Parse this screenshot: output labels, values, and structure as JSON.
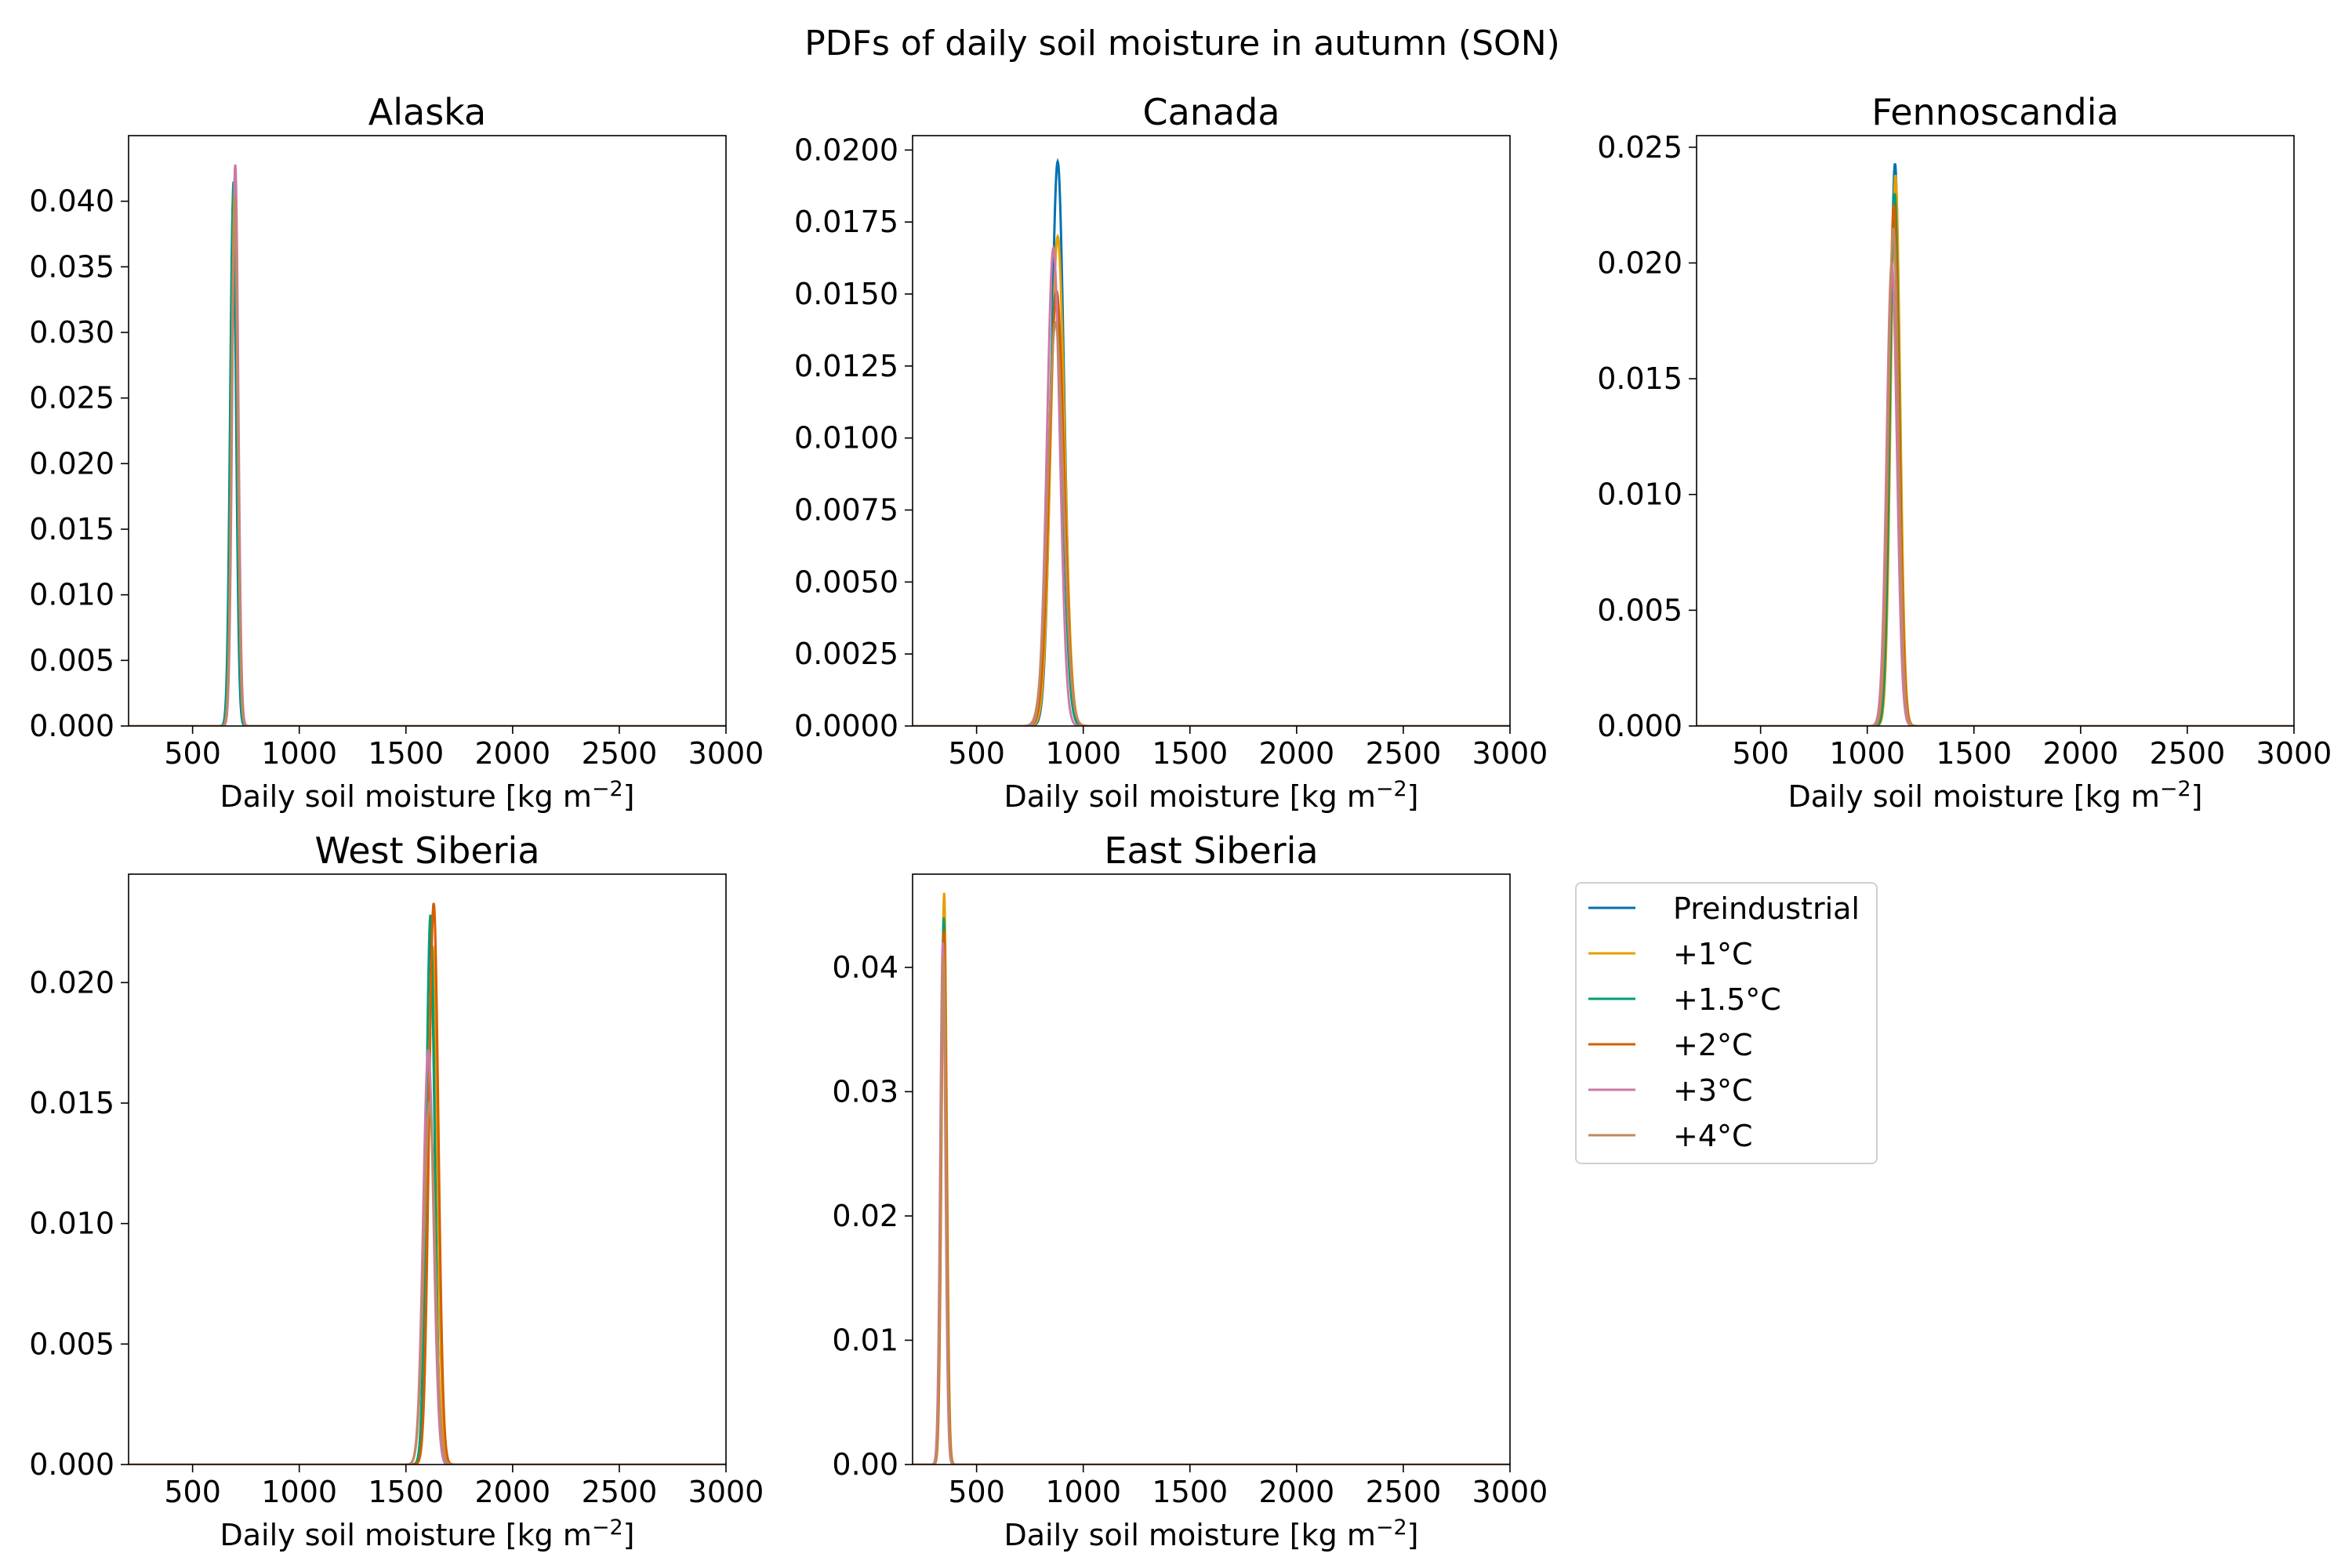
{
  "figure": {
    "title": "PDFs of daily soil moisture in autumn (SON)"
  },
  "legend": {
    "placement": "right of East Siberia panel, top-left",
    "entries": [
      {
        "label": "Preindustrial",
        "color": "#0072B2"
      },
      {
        "label": "+1°C",
        "color": "#E69F00"
      },
      {
        "label": "+1.5°C",
        "color": "#009E73"
      },
      {
        "label": "+2°C",
        "color": "#D55E00"
      },
      {
        "label": "+3°C",
        "color": "#CC79A7"
      },
      {
        "label": "+4°C",
        "color": "#C08A60"
      }
    ]
  },
  "chart_data": [
    {
      "type": "line",
      "title": "Alaska",
      "xlabel": "Daily soil moisture [kg m⁻²]",
      "ylabel": "",
      "xlim": [
        200,
        3000
      ],
      "ylim": [
        0,
        0.045
      ],
      "xticks": [
        "500",
        "1000",
        "1500",
        "2000",
        "2500",
        "3000"
      ],
      "yticks": [
        "0.000",
        "0.005",
        "0.010",
        "0.015",
        "0.020",
        "0.025",
        "0.030",
        "0.035",
        "0.040"
      ],
      "grid": false,
      "series": [
        {
          "name": "Preindustrial",
          "peak_x": 690,
          "peak_y": 0.04,
          "width": 14
        },
        {
          "name": "+1°C",
          "peak_x": 695,
          "peak_y": 0.041,
          "width": 14
        },
        {
          "name": "+1.5°C",
          "peak_x": 692,
          "peak_y": 0.0415,
          "width": 14
        },
        {
          "name": "+2°C",
          "peak_x": 698,
          "peak_y": 0.0405,
          "width": 14
        },
        {
          "name": "+3°C",
          "peak_x": 700,
          "peak_y": 0.0428,
          "width": 14
        },
        {
          "name": "+4°C",
          "peak_x": 697,
          "peak_y": 0.0405,
          "width": 14
        }
      ]
    },
    {
      "type": "line",
      "title": "Canada",
      "xlabel": "Daily soil moisture [kg m⁻²]",
      "ylabel": "",
      "xlim": [
        200,
        3000
      ],
      "ylim": [
        0,
        0.0205
      ],
      "xticks": [
        "500",
        "1000",
        "1500",
        "2000",
        "2500",
        "3000"
      ],
      "yticks": [
        "0.0000",
        "0.0025",
        "0.0050",
        "0.0075",
        "0.0100",
        "0.0125",
        "0.0150",
        "0.0175",
        "0.0200"
      ],
      "grid": false,
      "series": [
        {
          "name": "Preindustrial",
          "peak_x": 880,
          "peak_y": 0.0196,
          "width": 30
        },
        {
          "name": "+1°C",
          "peak_x": 880,
          "peak_y": 0.017,
          "width": 32
        },
        {
          "name": "+1.5°C",
          "peak_x": 870,
          "peak_y": 0.015,
          "width": 32
        },
        {
          "name": "+2°C",
          "peak_x": 875,
          "peak_y": 0.0151,
          "width": 34
        },
        {
          "name": "+3°C",
          "peak_x": 860,
          "peak_y": 0.0166,
          "width": 30
        },
        {
          "name": "+4°C",
          "peak_x": 870,
          "peak_y": 0.014,
          "width": 36
        }
      ]
    },
    {
      "type": "line",
      "title": "Fennoscandia",
      "xlabel": "Daily soil moisture [kg m⁻²]",
      "ylabel": "",
      "xlim": [
        200,
        3000
      ],
      "ylim": [
        0,
        0.0255
      ],
      "xticks": [
        "500",
        "1000",
        "1500",
        "2000",
        "2500",
        "3000"
      ],
      "yticks": [
        "0.000",
        "0.005",
        "0.010",
        "0.015",
        "0.020",
        "0.025"
      ],
      "grid": false,
      "series": [
        {
          "name": "Preindustrial",
          "peak_x": 1130,
          "peak_y": 0.0243,
          "width": 22
        },
        {
          "name": "+1°C",
          "peak_x": 1132,
          "peak_y": 0.0238,
          "width": 22
        },
        {
          "name": "+1.5°C",
          "peak_x": 1128,
          "peak_y": 0.023,
          "width": 22
        },
        {
          "name": "+2°C",
          "peak_x": 1125,
          "peak_y": 0.0225,
          "width": 24
        },
        {
          "name": "+3°C",
          "peak_x": 1115,
          "peak_y": 0.02,
          "width": 24
        },
        {
          "name": "+4°C",
          "peak_x": 1122,
          "peak_y": 0.0215,
          "width": 24
        }
      ]
    },
    {
      "type": "line",
      "title": "West Siberia",
      "xlabel": "Daily soil moisture [kg m⁻²]",
      "ylabel": "",
      "xlim": [
        200,
        3000
      ],
      "ylim": [
        0,
        0.0245
      ],
      "xticks": [
        "500",
        "1000",
        "1500",
        "2000",
        "2500",
        "3000"
      ],
      "yticks": [
        "0.000",
        "0.005",
        "0.010",
        "0.015",
        "0.020"
      ],
      "grid": false,
      "series": [
        {
          "name": "Preindustrial",
          "peak_x": 1615,
          "peak_y": 0.022,
          "width": 20
        },
        {
          "name": "+1°C",
          "peak_x": 1625,
          "peak_y": 0.0215,
          "width": 22
        },
        {
          "name": "+1.5°C",
          "peak_x": 1615,
          "peak_y": 0.0228,
          "width": 20
        },
        {
          "name": "+2°C",
          "peak_x": 1630,
          "peak_y": 0.0233,
          "width": 22
        },
        {
          "name": "+3°C",
          "peak_x": 1605,
          "peak_y": 0.0172,
          "width": 24
        },
        {
          "name": "+4°C",
          "peak_x": 1610,
          "peak_y": 0.015,
          "width": 26
        }
      ]
    },
    {
      "type": "line",
      "title": "East Siberia",
      "xlabel": "Daily soil moisture [kg m⁻²]",
      "ylabel": "",
      "xlim": [
        200,
        3000
      ],
      "ylim": [
        0,
        0.0475
      ],
      "xticks": [
        "500",
        "1000",
        "1500",
        "2000",
        "2500",
        "3000"
      ],
      "yticks": [
        "0.00",
        "0.01",
        "0.02",
        "0.03",
        "0.04"
      ],
      "grid": false,
      "series": [
        {
          "name": "Preindustrial",
          "peak_x": 345,
          "peak_y": 0.042,
          "width": 12
        },
        {
          "name": "+1°C",
          "peak_x": 348,
          "peak_y": 0.046,
          "width": 12
        },
        {
          "name": "+1.5°C",
          "peak_x": 346,
          "peak_y": 0.044,
          "width": 12
        },
        {
          "name": "+2°C",
          "peak_x": 347,
          "peak_y": 0.043,
          "width": 12
        },
        {
          "name": "+3°C",
          "peak_x": 342,
          "peak_y": 0.042,
          "width": 12
        },
        {
          "name": "+4°C",
          "peak_x": 345,
          "peak_y": 0.041,
          "width": 12
        }
      ]
    }
  ]
}
